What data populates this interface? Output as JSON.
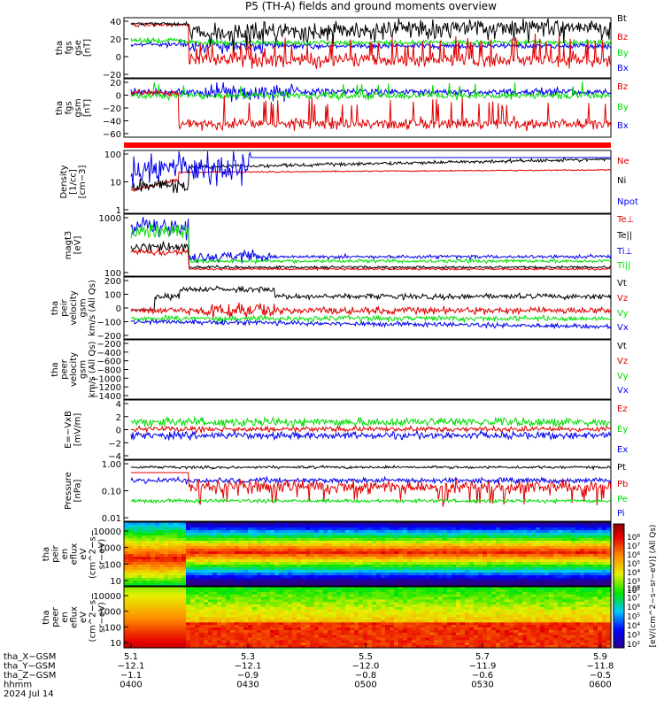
{
  "title": "P5 (TH-A) fields and ground moments overview",
  "colors": {
    "black": "#000000",
    "red": "#e00000",
    "green": "#00dd00",
    "blue": "#0000ee",
    "ylabel": "#000000"
  },
  "chart_data": [
    {
      "type": "line",
      "panel": "fgs_gse",
      "ylabel_lines": [
        "tha",
        "fgs",
        "gse",
        "[nT]"
      ],
      "yticks": [
        "40",
        "20",
        "0",
        "−20"
      ],
      "ylim": [
        -35,
        42
      ],
      "legend": [
        "Bt",
        "Bz",
        "By",
        "Bx"
      ],
      "legend_colors": [
        "black",
        "red",
        "green",
        "blue"
      ]
    },
    {
      "type": "line",
      "panel": "fgs_gsm",
      "ylabel_lines": [
        "tha",
        "fgs",
        "gsm",
        "[nT]"
      ],
      "yticks": [
        "20",
        "0",
        "−20",
        "−40",
        "−60"
      ],
      "ylim": [
        -75,
        22
      ],
      "legend": [
        "Bz",
        "By",
        "Bx"
      ],
      "legend_colors": [
        "red",
        "green",
        "blue"
      ]
    },
    {
      "type": "line",
      "panel": "density",
      "ylabel_lines": [
        "Density",
        "[1/cc]",
        "[cm−3]"
      ],
      "yticks": [
        "100",
        "10",
        "1"
      ],
      "log": true,
      "legend": [
        "Ne",
        "Ni",
        "Npot"
      ],
      "legend_colors": [
        "red",
        "black",
        "blue"
      ]
    },
    {
      "type": "line",
      "panel": "temperature",
      "ylabel_lines": [
        "magt3",
        "[eV]"
      ],
      "yticks": [
        "1000",
        "100"
      ],
      "log": true,
      "legend": [
        "Te⊥",
        "Te||",
        "Ti⊥",
        "Ti||"
      ],
      "legend_colors": [
        "red",
        "black",
        "blue",
        "green"
      ]
    },
    {
      "type": "line",
      "panel": "peir_velocity",
      "ylabel_lines": [
        "tha",
        "peir",
        "velocity",
        "gsm",
        "km/s (All Qs)"
      ],
      "yticks": [
        "200",
        "100",
        "0",
        "−100",
        "−200"
      ],
      "legend": [
        "Vt",
        "Vz",
        "Vy",
        "Vx"
      ],
      "legend_colors": [
        "black",
        "red",
        "green",
        "blue"
      ]
    },
    {
      "type": "line",
      "panel": "peer_velocity",
      "ylabel_lines": [
        "tha",
        "peer",
        "velocity",
        "gsm",
        "km/s (All Qs)"
      ],
      "yticks": [
        "−200",
        "−400",
        "−600",
        "−800",
        "−1000",
        "−1200",
        "−1400"
      ],
      "legend": [
        "Vt",
        "Vz",
        "Vy",
        "Vx"
      ],
      "legend_colors": [
        "black",
        "red",
        "green",
        "blue"
      ]
    },
    {
      "type": "line",
      "panel": "efield",
      "ylabel_lines": [
        "E=−VxB",
        "[mV/m]"
      ],
      "yticks": [
        "4",
        "2",
        "0",
        "−2",
        "−4"
      ],
      "ylim": [
        -5,
        5
      ],
      "legend": [
        "Ez",
        "Ey",
        "Ex"
      ],
      "legend_colors": [
        "red",
        "green",
        "blue"
      ]
    },
    {
      "type": "line",
      "panel": "pressure",
      "ylabel_lines": [
        "Pressure",
        "[nPa]"
      ],
      "yticks": [
        "1.00",
        "0.10",
        "0.01"
      ],
      "log": true,
      "legend": [
        "Pt",
        "Pb",
        "Pe",
        "Pi"
      ],
      "legend_colors": [
        "black",
        "red",
        "green",
        "blue"
      ]
    },
    {
      "type": "heatmap",
      "panel": "peir_spectrogram",
      "ylabel_lines": [
        "tha",
        "peir",
        "en",
        "eflux",
        "eV",
        "(cm^2−s−",
        "sr−eV)"
      ],
      "yticks": [
        "10000",
        "1000",
        "100",
        "10"
      ],
      "log": true
    },
    {
      "type": "heatmap",
      "panel": "peer_spectrogram",
      "ylabel_lines": [
        "tha",
        "peer",
        "en",
        "eflux",
        "eV",
        "(cm^2−s−",
        "sr−eV)"
      ],
      "yticks": [
        "10000",
        "1000",
        "100",
        "10"
      ],
      "log": true
    }
  ],
  "colorbar": {
    "label": "[eV/(cm^2−s−sr−eV)] (All Qs)",
    "ticks_top": [
      "10⁸",
      "10⁷",
      "10⁶",
      "10⁵",
      "10⁴",
      "10³",
      "10²"
    ],
    "ticks_bottom": [
      "10⁸",
      "10⁷",
      "10⁶",
      "10⁵",
      "10⁴",
      "10³",
      "10²"
    ]
  },
  "time_axis": {
    "rows": [
      {
        "label": "tha_X−GSM",
        "values": [
          "5.1",
          "5.3",
          "5.5",
          "5.7",
          "5.9"
        ]
      },
      {
        "label": "tha_Y−GSM",
        "values": [
          "−12.1",
          "−12.1",
          "−12.0",
          "−11.9",
          "−11.8"
        ]
      },
      {
        "label": "tha_Z−GSM",
        "values": [
          "−1.1",
          "−0.9",
          "−0.8",
          "−0.6",
          "−0.5"
        ]
      },
      {
        "label": "hhmm",
        "values": [
          "0400",
          "0430",
          "0500",
          "0530",
          "0600"
        ]
      }
    ],
    "date": "2024 Jul 14"
  }
}
